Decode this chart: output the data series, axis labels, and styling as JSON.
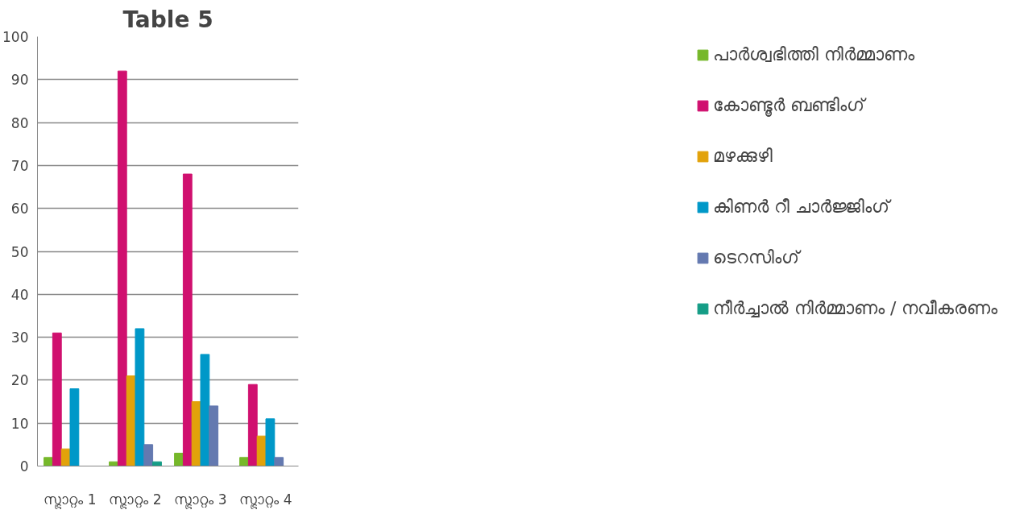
{
  "chart_data": {
    "type": "bar",
    "title": "Table 5",
    "categories": [
      "സ്ട്രാറ്റം 1",
      "സ്ട്രാറ്റം 2",
      "സ്ട്രാറ്റം 3",
      "സ്ട്രാറ്റം 4"
    ],
    "series": [
      {
        "name": "പാർശ്വഭിത്തി നിർമ്മാണം",
        "color": "#76b82a",
        "values": [
          2,
          1,
          3,
          2
        ]
      },
      {
        "name": "കോണ്ടൂർ ബണ്ടിംഗ്",
        "color": "#d0106f",
        "values": [
          31,
          92,
          68,
          19
        ]
      },
      {
        "name": "മഴക്കുഴി",
        "color": "#e2a20a",
        "values": [
          4,
          21,
          15,
          7
        ]
      },
      {
        "name": "കിണർ റീ ചാർജ്ജിംഗ്",
        "color": "#0098c8",
        "values": [
          18,
          32,
          26,
          11
        ]
      },
      {
        "name": "ടെറസിംഗ്",
        "color": "#6479b0",
        "values": [
          0,
          5,
          14,
          2
        ]
      },
      {
        "name": "നീർച്ചാൽ നിർമ്മാണം / നവീകരണം",
        "color": "#159d86",
        "values": [
          0,
          1,
          0,
          0
        ]
      }
    ],
    "ylim": [
      0,
      100
    ],
    "yticks": [
      0,
      10,
      20,
      30,
      40,
      50,
      60,
      70,
      80,
      90,
      100
    ],
    "grid": "y",
    "legend": "right"
  }
}
